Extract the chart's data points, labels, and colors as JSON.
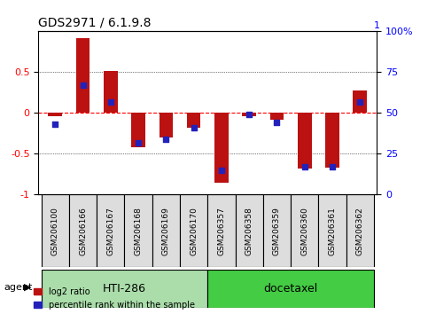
{
  "title": "GDS2971 / 6.1.9.8",
  "samples": [
    "GSM206100",
    "GSM206166",
    "GSM206167",
    "GSM206168",
    "GSM206169",
    "GSM206170",
    "GSM206357",
    "GSM206358",
    "GSM206359",
    "GSM206360",
    "GSM206361",
    "GSM206362"
  ],
  "log2_ratio": [
    -0.04,
    0.92,
    0.52,
    -0.42,
    -0.3,
    -0.18,
    -0.85,
    -0.04,
    -0.08,
    -0.68,
    -0.67,
    0.28
  ],
  "percentile_rank": [
    43,
    67,
    57,
    32,
    34,
    41,
    15,
    49,
    44,
    17,
    17,
    57
  ],
  "group1_label": "HTI-286",
  "group2_label": "docetaxel",
  "group1_count": 6,
  "group2_count": 6,
  "agent_label": "agent",
  "legend_log2": "log2 ratio",
  "legend_pct": "percentile rank within the sample",
  "bar_color": "#bb1111",
  "dot_color": "#2222bb",
  "group1_color": "#aaddaa",
  "group2_color": "#44cc44",
  "ylim": [
    -1.0,
    1.0
  ],
  "y_ticks_left": [
    -1,
    -0.5,
    0,
    0.5
  ],
  "y_tick_labels_left": [
    "-1",
    "-0.5",
    "0",
    "0.5"
  ],
  "y_ticks_right": [
    0,
    25,
    50,
    75,
    100
  ],
  "y_tick_labels_right": [
    "0",
    "25",
    "50",
    "75",
    "100%"
  ],
  "hlines": [
    -0.5,
    0.0,
    0.5
  ],
  "bar_width": 0.5
}
